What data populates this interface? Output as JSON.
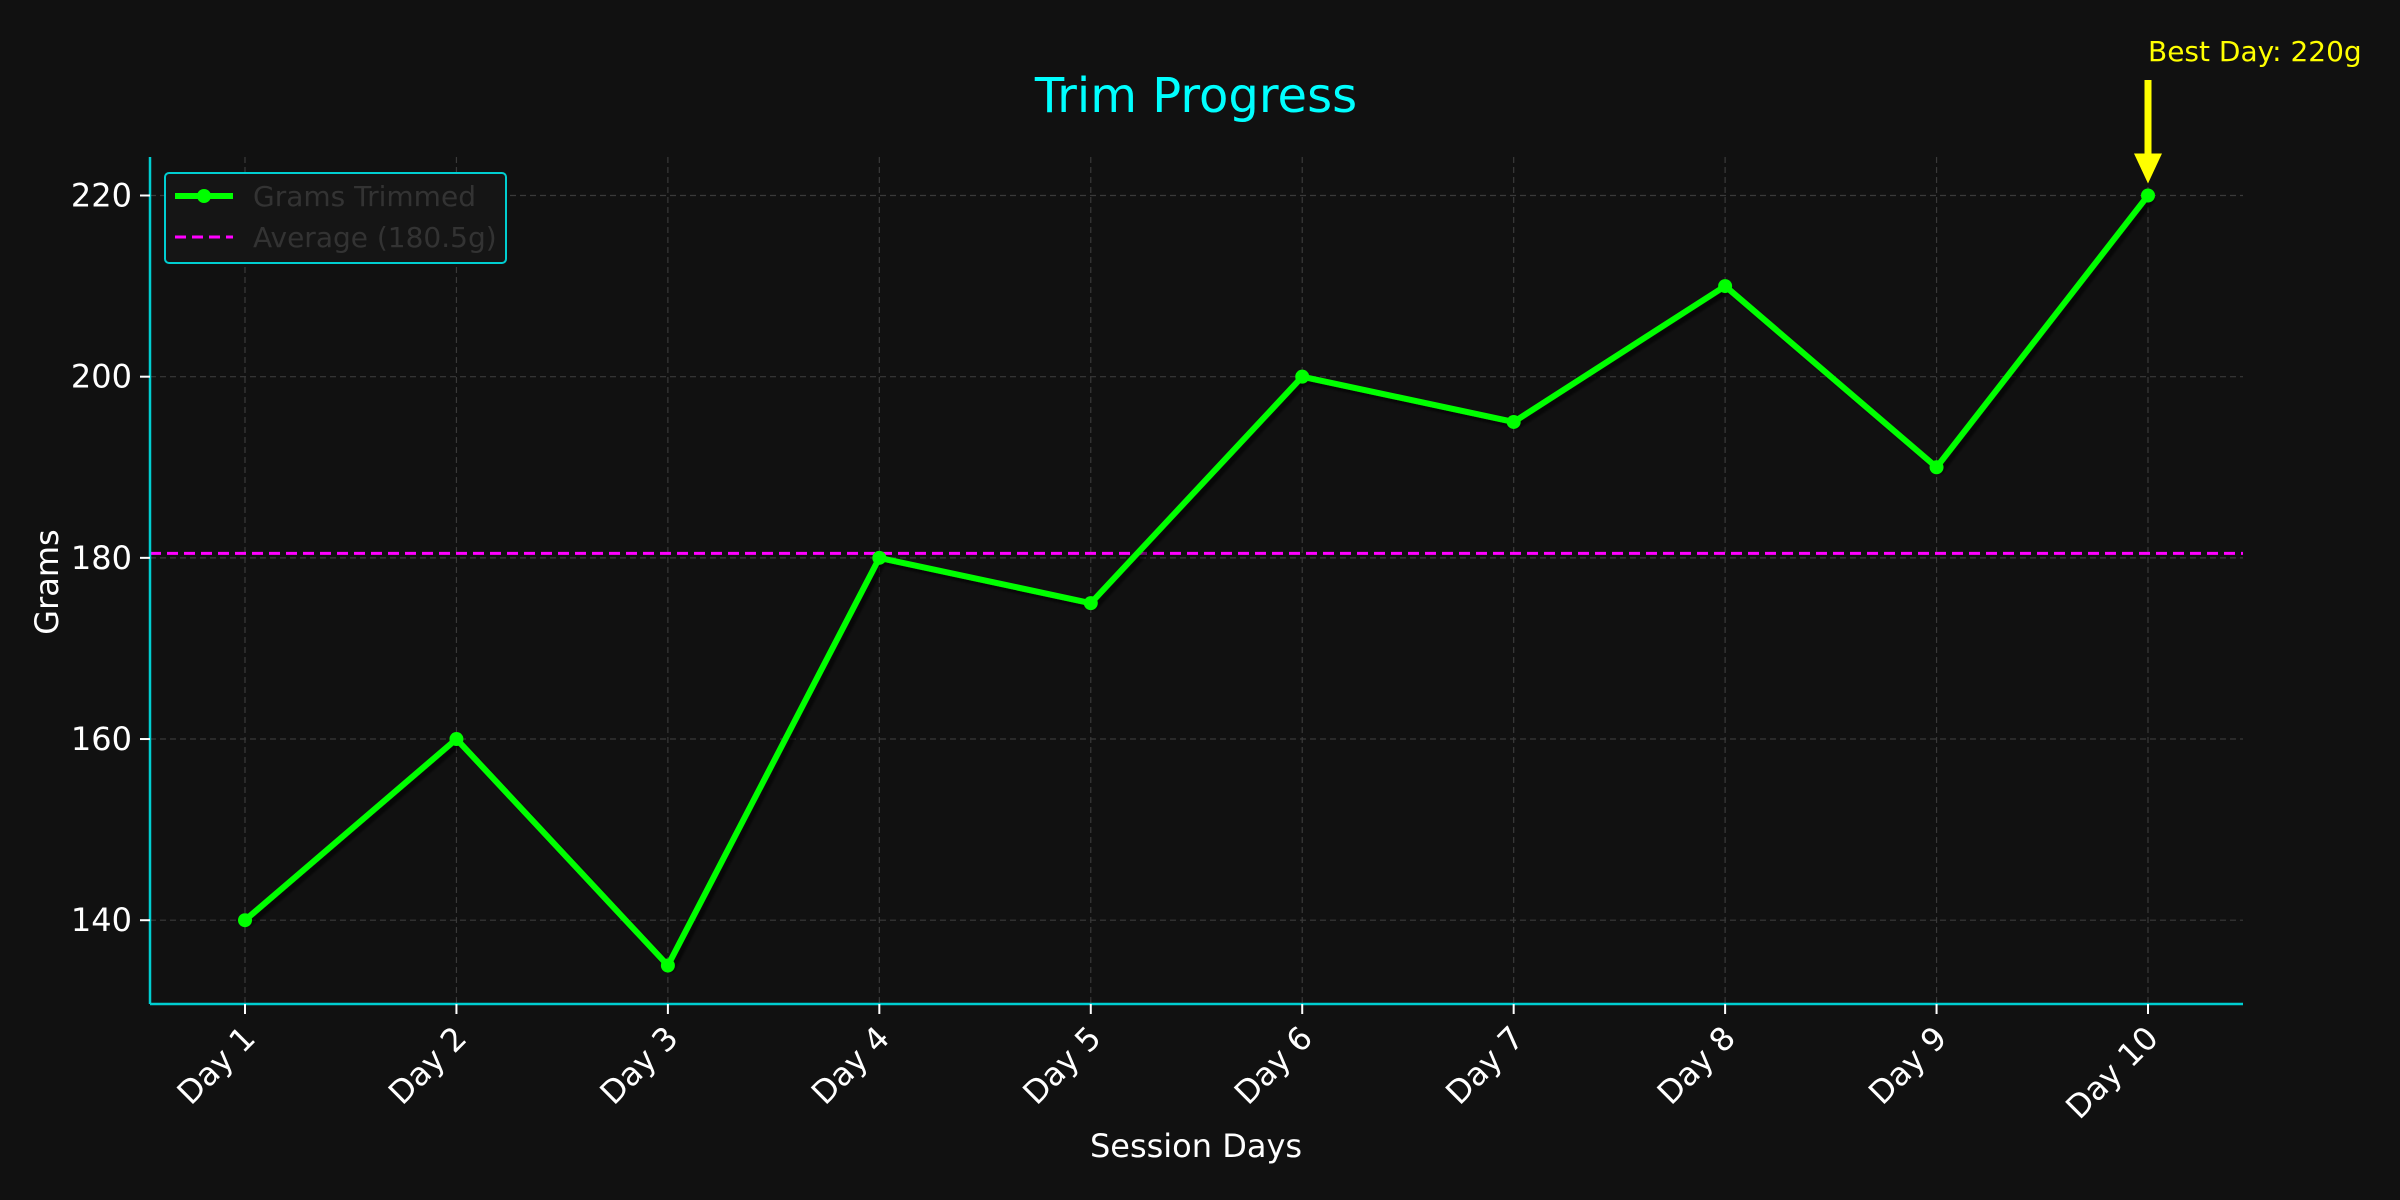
{
  "chart_data": {
    "type": "line",
    "title": "Trim Progress",
    "xlabel": "Session Days",
    "ylabel": "Grams",
    "categories": [
      "Day 1",
      "Day 2",
      "Day 3",
      "Day 4",
      "Day 5",
      "Day 6",
      "Day 7",
      "Day 8",
      "Day 9",
      "Day 10"
    ],
    "series": [
      {
        "name": "Grams Trimmed",
        "values": [
          140,
          160,
          135,
          180,
          175,
          200,
          195,
          210,
          190,
          220
        ],
        "color": "#00ff00"
      }
    ],
    "average": {
      "label": "Average (180.5g)",
      "value": 180.5,
      "color": "#ff00ff"
    },
    "annotation": {
      "text": "Best Day: 220g",
      "category": "Day 10",
      "value": 220,
      "color": "#ffff00"
    },
    "yticks": [
      140,
      160,
      180,
      200,
      220
    ],
    "ylim": [
      130.75,
      224.25
    ],
    "grid": true,
    "legend_position": "top-left",
    "colors": {
      "background": "#111111",
      "title": "#00ffff",
      "axes": "#00ced1",
      "grid": "#3a3a3a",
      "text": "#ffffff",
      "legend_text": "#333333"
    }
  }
}
